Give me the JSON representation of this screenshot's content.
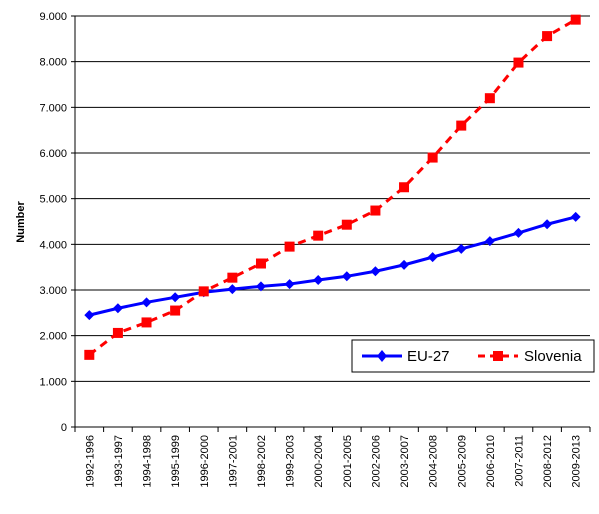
{
  "chart_data": {
    "type": "line",
    "title": "",
    "xlabel": "",
    "ylabel": "Number",
    "ylim": [
      0,
      9000
    ],
    "yticks": [
      0,
      1000,
      2000,
      3000,
      4000,
      5000,
      6000,
      7000,
      8000,
      9000
    ],
    "ytick_labels": [
      "0",
      "1.000",
      "2.000",
      "3.000",
      "4.000",
      "5.000",
      "6.000",
      "7.000",
      "8.000",
      "9.000"
    ],
    "grid": "horizontal",
    "legend_position": "lower-right",
    "categories": [
      "1992-1996",
      "1993-1997",
      "1994-1998",
      "1995-1999",
      "1996-2000",
      "1997-2001",
      "1998-2002",
      "1999-2003",
      "2000-2004",
      "2001-2005",
      "2002-2006",
      "2003-2007",
      "2004-2008",
      "2005-2009",
      "2006-2010",
      "2007-2011",
      "2008-2012",
      "2009-2013"
    ],
    "series": [
      {
        "name": "EU-27",
        "color": "#0000ff",
        "line_style": "solid",
        "marker": "diamond",
        "values": [
          2450,
          2600,
          2730,
          2840,
          2950,
          3020,
          3080,
          3130,
          3220,
          3300,
          3410,
          3550,
          3720,
          3900,
          4070,
          4250,
          4440,
          4600
        ]
      },
      {
        "name": "Slovenia",
        "color": "#ff0000",
        "line_style": "dashed",
        "marker": "square",
        "values": [
          1580,
          2060,
          2290,
          2550,
          2970,
          3270,
          3580,
          3950,
          4190,
          4430,
          4740,
          5250,
          5900,
          6600,
          7200,
          7980,
          8560,
          8920
        ]
      }
    ]
  }
}
